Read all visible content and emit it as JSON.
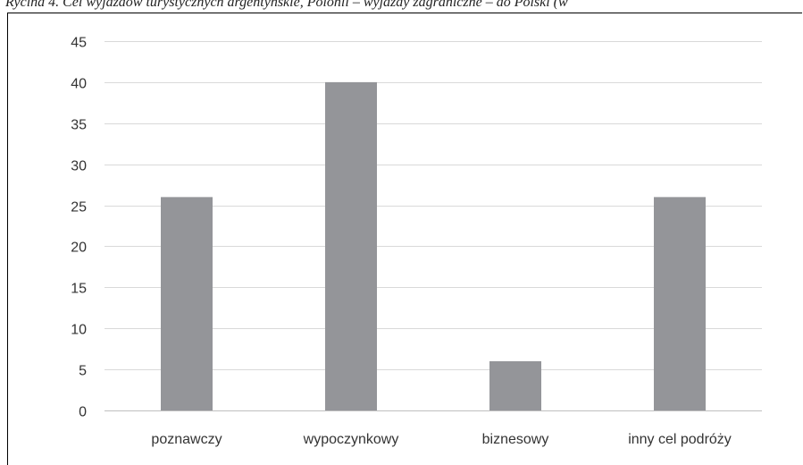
{
  "caption": "Rycina 4. Cel wyjazdów turystycznych argentyńskie, Polonii – wyjazdy zagraniczne – do Polski (w",
  "chart_data": {
    "type": "bar",
    "title": "",
    "xlabel": "",
    "ylabel": "",
    "categories": [
      "poznawczy",
      "wypoczynkowy",
      "biznesowy",
      "inny cel podróży"
    ],
    "values": [
      26,
      40,
      6,
      26
    ],
    "ylim": [
      0,
      45
    ],
    "yticks": [
      0,
      5,
      10,
      15,
      20,
      25,
      30,
      35,
      40,
      45
    ],
    "grid": true,
    "legend": "none",
    "colors": {
      "bar": "#949599",
      "grid": "#d9d9d9",
      "axis": "#bfbfbf",
      "text": "#333333"
    }
  }
}
